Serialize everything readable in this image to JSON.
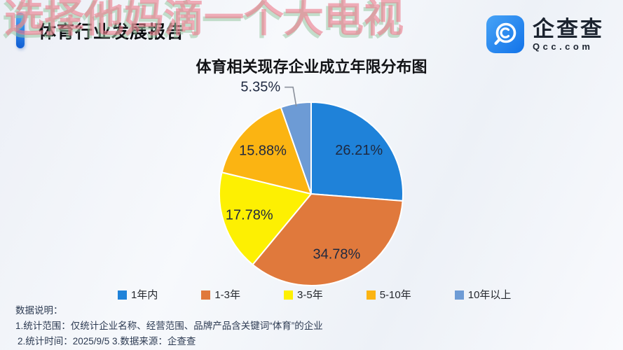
{
  "watermark": {
    "text": "选择他妈滴一个大电视"
  },
  "header": {
    "title": "体育行业发展报告"
  },
  "logo": {
    "name": "企查查",
    "domain": "Qcc.com",
    "icon": "qcc-magnifier-icon",
    "badge_color_top": "#47a3f6",
    "badge_color_bottom": "#1273e9"
  },
  "chart_data": {
    "type": "pie",
    "title": "体育相关现存企业成立年限分布图",
    "categories": [
      "1年内",
      "1-3年",
      "3-5年",
      "5-10年",
      "10年以上"
    ],
    "values": [
      26.21,
      34.78,
      17.78,
      15.88,
      5.35
    ],
    "unit": "%",
    "labels": [
      "26.21%",
      "34.78%",
      "17.78%",
      "15.88%",
      "5.35%"
    ],
    "colors": [
      "#1f82d9",
      "#e0793c",
      "#fdf002",
      "#fbb412",
      "#6d9bd5"
    ],
    "start_angle_deg": 0,
    "direction": "clockwise",
    "outside_label_indices": [
      4
    ],
    "slice_border_color": "#ffffff",
    "label_color": "#1f2940",
    "leader_line_color": "#8a909b",
    "legend_position": "bottom"
  },
  "notes": {
    "heading": "数据说明：",
    "line1": "1.统计范围：仅统计企业名称、经营范围、品牌产品含关键词“体育”的企业",
    "line2": "2.统计时间：2025/9/5  3.数据来源：企查查"
  }
}
